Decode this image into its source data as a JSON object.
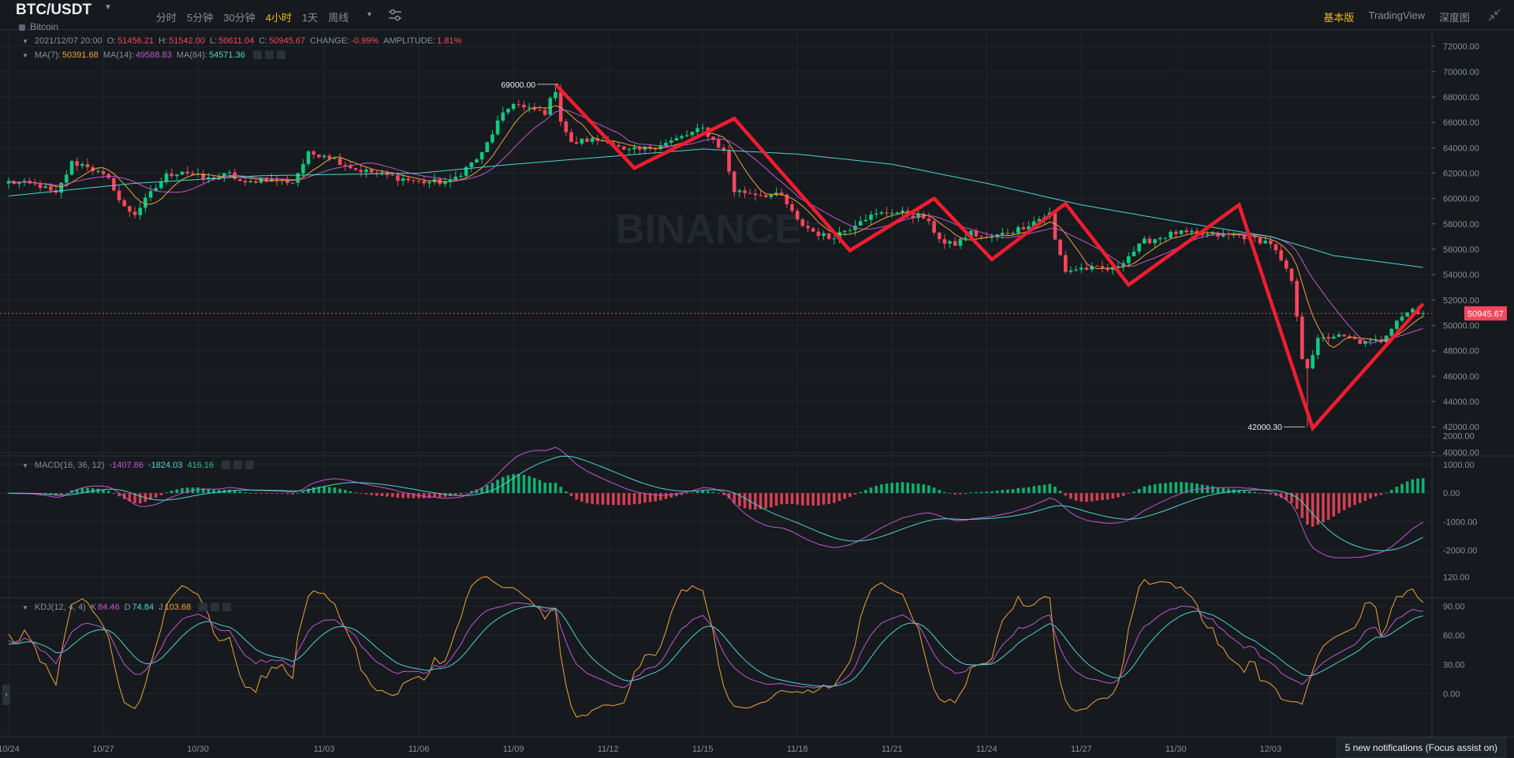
{
  "header": {
    "symbol": "BTC/USDT",
    "name": "Bitcoin",
    "intervals": [
      "分时",
      "5分钟",
      "30分钟",
      "4小时",
      "1天",
      "周线"
    ],
    "active_interval": "4小时",
    "views": [
      "基本版",
      "TradingView",
      "深度图"
    ],
    "active_view": "基本版"
  },
  "ohlc_row": {
    "time": "2021/12/07 20:00",
    "open_label": "O:",
    "open": "51456.21",
    "high_label": "H:",
    "high": "51542.00",
    "low_label": "L:",
    "low": "50611.04",
    "close_label": "C:",
    "close": "50945.67",
    "change_label": "CHANGE:",
    "change": "-0.99%",
    "amplitude_label": "AMPLITUDE:",
    "amplitude": "1.81%"
  },
  "ma_row": {
    "ma7_label": "MA(7):",
    "ma7": "50391.68",
    "ma14_label": "MA(14):",
    "ma14": "49588.83",
    "ma84_label": "MA(84):",
    "ma84": "54571.36"
  },
  "macd_row": {
    "label": "MACD(16, 36, 12)",
    "dif": "-1407.86",
    "dea": "-1824.03",
    "hist": "416.16"
  },
  "kdj_row": {
    "label": "KDJ(12, 4, 4)",
    "k_label": "K",
    "k": "84.46",
    "d_label": "D",
    "d": "74.84",
    "j_label": "J",
    "j": "103.68"
  },
  "notification": "5 new notifications (Focus assist on)",
  "watermark": "BINANCE",
  "colors": {
    "up": "#0ecb81",
    "down": "#f6465d",
    "ma7": "#f0a13a",
    "ma14": "#c455d0",
    "ma84": "#4fd1cf",
    "pattern": "#f01c30",
    "grid": "#22272e",
    "axis_text": "#848e9c"
  },
  "chart_data": {
    "type": "candlestick",
    "x_axis": {
      "ticks": [
        "10/24",
        "10/27",
        "10/30",
        "11/03",
        "11/06",
        "11/09",
        "11/12",
        "11/15",
        "11/18",
        "11/21",
        "11/24",
        "11/27",
        "11/30",
        "12/03"
      ],
      "range": [
        "2021-10-24 00:00",
        "2021-12-07 20:00"
      ],
      "interval": "4h"
    },
    "price_axis": {
      "ticks": [
        "72000.00",
        "70000.00",
        "68000.00",
        "66000.00",
        "64000.00",
        "62000.00",
        "60000.00",
        "58000.00",
        "56000.00",
        "54000.00",
        "52000.00",
        "50000.00",
        "48000.00",
        "46000.00",
        "44000.00",
        "42000.00",
        "40000.00"
      ],
      "range": [
        39900,
        72600
      ],
      "last_price": "50945.67",
      "high_marker": "69000.00",
      "low_marker": "42000.30"
    },
    "close_anchors": [
      [
        "10/24 00:00",
        61300
      ],
      [
        "10/25 00:00",
        61000
      ],
      [
        "10/25 12:00",
        60300
      ],
      [
        "10/26 00:00",
        62800
      ],
      [
        "10/26 12:00",
        62600
      ],
      [
        "10/27 06:00",
        61300
      ],
      [
        "10/27 14:00",
        59400
      ],
      [
        "10/28 00:00",
        58800
      ],
      [
        "10/28 12:00",
        60400
      ],
      [
        "10/29 00:00",
        61800
      ],
      [
        "10/29 12:00",
        62200
      ],
      [
        "10/30 06:00",
        61500
      ],
      [
        "10/31 00:00",
        61900
      ],
      [
        "10/31 12:00",
        61100
      ],
      [
        "11/01 00:00",
        61600
      ],
      [
        "11/02 00:00",
        61300
      ],
      [
        "11/02 12:00",
        63500
      ],
      [
        "11/03 00:00",
        63500
      ],
      [
        "11/04 00:00",
        62300
      ],
      [
        "11/05 00:00",
        61800
      ],
      [
        "11/06 00:00",
        61300
      ],
      [
        "11/07 00:00",
        61300
      ],
      [
        "11/08 00:00",
        63500
      ],
      [
        "11/08 12:00",
        66000
      ],
      [
        "11/09 00:00",
        67600
      ],
      [
        "11/09 08:00",
        67100
      ],
      [
        "11/10 00:00",
        66800
      ],
      [
        "11/10 08:00",
        68600
      ],
      [
        "11/10 12:00",
        66200
      ],
      [
        "11/10 20:00",
        64300
      ],
      [
        "11/11 06:00",
        64600
      ],
      [
        "11/12 00:00",
        64600
      ],
      [
        "11/12 12:00",
        63700
      ],
      [
        "11/13 00:00",
        63800
      ],
      [
        "11/14 00:00",
        64500
      ],
      [
        "11/15 00:00",
        65500
      ],
      [
        "11/15 16:00",
        63700
      ],
      [
        "11/16 00:00",
        60600
      ],
      [
        "11/17 00:00",
        60300
      ],
      [
        "11/17 12:00",
        60200
      ],
      [
        "11/18 00:00",
        58200
      ],
      [
        "11/18 12:00",
        57400
      ],
      [
        "11/19 00:00",
        56900
      ],
      [
        "11/19 16:00",
        57700
      ],
      [
        "11/20 00:00",
        58400
      ],
      [
        "11/21 00:00",
        59000
      ],
      [
        "11/22 00:00",
        58500
      ],
      [
        "11/22 16:00",
        56400
      ],
      [
        "11/23 00:00",
        56400
      ],
      [
        "11/23 12:00",
        57300
      ],
      [
        "11/24 00:00",
        56800
      ],
      [
        "11/25 00:00",
        57600
      ],
      [
        "11/26 00:00",
        58800
      ],
      [
        "11/26 04:00",
        56700
      ],
      [
        "11/26 12:00",
        54300
      ],
      [
        "11/27 00:00",
        54500
      ],
      [
        "11/28 00:00",
        54400
      ],
      [
        "11/29 00:00",
        56600
      ],
      [
        "11/30 00:00",
        57300
      ],
      [
        "12/01 00:00",
        57100
      ],
      [
        "12/02 00:00",
        57100
      ],
      [
        "12/03 00:00",
        56500
      ],
      [
        "12/03 16:00",
        53500
      ],
      [
        "12/04 00:00",
        47500
      ],
      [
        "12/04 04:00",
        46800
      ],
      [
        "12/04 12:00",
        48800
      ],
      [
        "12/05 00:00",
        49200
      ],
      [
        "12/06 00:00",
        48600
      ],
      [
        "12/06 12:00",
        48800
      ],
      [
        "12/07 00:00",
        50500
      ],
      [
        "12/07 12:00",
        51300
      ],
      [
        "12/07 20:00",
        50945.67
      ]
    ],
    "overlay_pattern": [
      [
        "11/10 08:00",
        69000
      ],
      [
        "11/12 20:00",
        62400
      ],
      [
        "11/16 00:00",
        66300
      ],
      [
        "11/19 16:00",
        55900
      ],
      [
        "11/22 08:00",
        60000
      ],
      [
        "11/24 04:00",
        55200
      ],
      [
        "11/26 12:00",
        59600
      ],
      [
        "11/28 12:00",
        53200
      ],
      [
        "12/02 00:00",
        59500
      ],
      [
        "12/04 08:00",
        41900
      ],
      [
        "12/07 20:00",
        51700
      ]
    ],
    "ma84_anchors": [
      [
        "10/24 00:00",
        60200
      ],
      [
        "10/28 00:00",
        61200
      ],
      [
        "11/01 00:00",
        61800
      ],
      [
        "11/06 00:00",
        62000
      ],
      [
        "11/09 00:00",
        62700
      ],
      [
        "11/12 00:00",
        63300
      ],
      [
        "11/15 00:00",
        63900
      ],
      [
        "11/18 00:00",
        63500
      ],
      [
        "11/21 00:00",
        62700
      ],
      [
        "11/24 00:00",
        61200
      ],
      [
        "11/27 00:00",
        59500
      ],
      [
        "11/30 00:00",
        58200
      ],
      [
        "12/03 00:00",
        57000
      ],
      [
        "12/05 00:00",
        55500
      ],
      [
        "12/07 20:00",
        54571.36
      ]
    ],
    "macd": {
      "ticks": [
        "2000.00",
        "1000.00",
        "0.00",
        "-1000.00",
        "-2000.00"
      ],
      "range": [
        -2450,
        2100
      ],
      "last": {
        "dif": -1407.86,
        "dea": -1824.03,
        "hist": 416.16
      }
    },
    "kdj": {
      "ticks": [
        "120.00",
        "90.00",
        "60.00",
        "30.00",
        "0.00"
      ],
      "range": [
        -10,
        122
      ],
      "last": {
        "k": 84.46,
        "d": 74.84,
        "j": 103.68
      }
    }
  }
}
